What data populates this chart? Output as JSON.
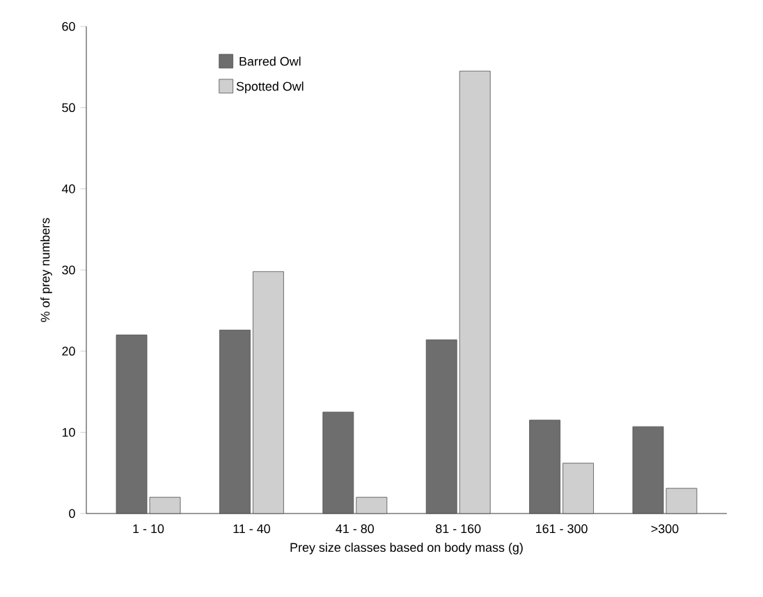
{
  "chart_data": {
    "type": "bar",
    "xlabel": "Prey size classes based on body mass (g)",
    "ylabel": "% of prey  numbers",
    "categories": [
      "1 - 10",
      "11 - 40",
      "41 - 80",
      "81 - 160",
      "161 - 300",
      ">300"
    ],
    "series": [
      {
        "name": "Barred Owl",
        "color": "#6e6e6e",
        "values": [
          22,
          22.6,
          12.5,
          21.4,
          11.5,
          10.7
        ]
      },
      {
        "name": "Spotted Owl",
        "color": "#cfcfcf",
        "values": [
          2,
          29.8,
          2,
          54.5,
          6.2,
          3.1
        ]
      }
    ],
    "ylim": [
      0,
      60
    ],
    "yticks": [
      0,
      10,
      20,
      30,
      40,
      50,
      60
    ],
    "legend": "top left",
    "grid": false
  }
}
